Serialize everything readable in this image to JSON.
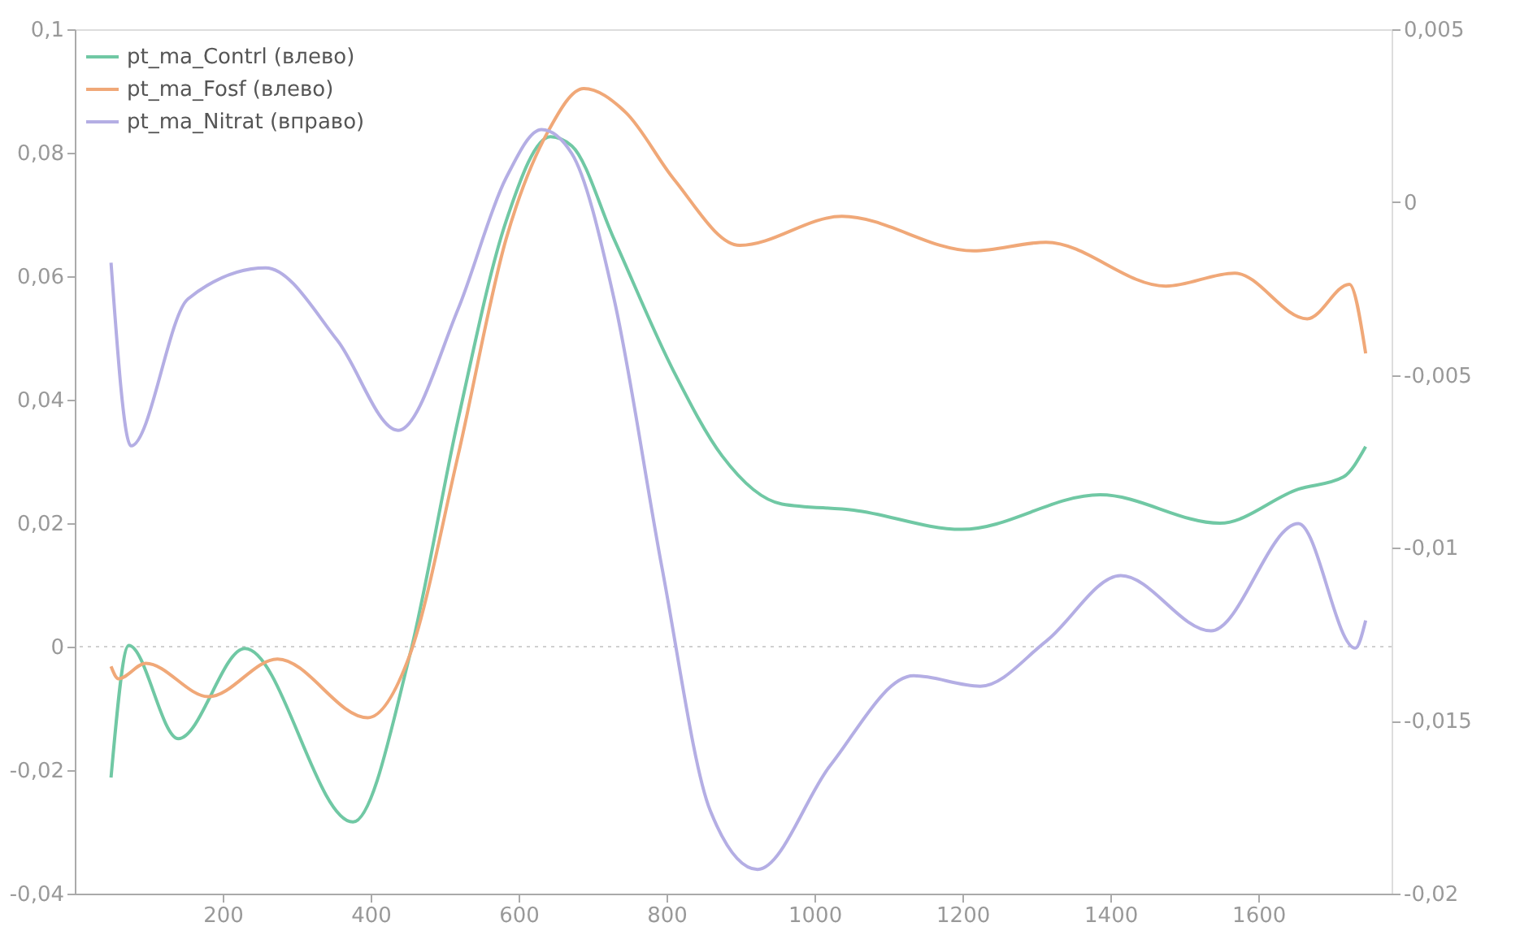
{
  "chart_data": {
    "type": "line",
    "xlim": [
      0,
      1780
    ],
    "xticks": [
      200,
      400,
      600,
      800,
      1000,
      1200,
      1400,
      1600
    ],
    "ylim": [
      -0.04,
      0.1
    ],
    "yticks": [
      {
        "value": -0.04,
        "label": "-0,04"
      },
      {
        "value": -0.02,
        "label": "-0,02"
      },
      0,
      {
        "value": 0.02,
        "label": "0,02"
      },
      {
        "value": 0.04,
        "label": "0,04"
      },
      {
        "value": 0.06,
        "label": "0,06"
      },
      {
        "value": 0.08,
        "label": "0,08"
      },
      {
        "value": 0.1,
        "label": "0,1"
      }
    ],
    "y2lim": [
      -0.02,
      0.005
    ],
    "y2ticks": [
      {
        "value": -0.02,
        "label": "-0,02"
      },
      {
        "value": -0.015,
        "label": "-0,015"
      },
      {
        "value": -0.01,
        "label": "-0,01"
      },
      {
        "value": -0.005,
        "label": "-0,005"
      },
      0,
      {
        "value": 0.005,
        "label": "0,005"
      }
    ],
    "grid": false,
    "legend": "top left",
    "line_style": "solid",
    "marker": "none",
    "ref_lines": [
      {
        "axis": "y",
        "value": 0,
        "color": "#d0d0d0",
        "line_style": "dotted"
      }
    ],
    "series": [
      {
        "name": "pt_ma_Contrl (влево)",
        "color": "#70c8a4",
        "x": [
          49,
          73,
          140,
          230,
          376,
          453,
          518,
          583,
          643,
          672,
          729,
          810,
          875,
          956,
          1053,
          1199,
          1386,
          1548,
          1654,
          1715,
          1745
        ],
        "values": [
          -0.0212,
          0.0002,
          -0.0149,
          -0.0003,
          -0.0284,
          -0.0013,
          0.0367,
          0.0689,
          0.0826,
          0.0811,
          0.066,
          0.0445,
          0.0309,
          0.0231,
          0.0221,
          0.019,
          0.0246,
          0.02,
          0.0255,
          0.0275,
          0.0324
        ]
      },
      {
        "name": "pt_ma_Fosf (влево)",
        "color": "#f0a878",
        "x": [
          49,
          59,
          96,
          181,
          274,
          396,
          453,
          518,
          583,
          640,
          688,
          745,
          810,
          899,
          1037,
          1215,
          1313,
          1475,
          1568,
          1666,
          1723,
          1745
        ],
        "values": [
          -0.0032,
          -0.0052,
          -0.0027,
          -0.0081,
          -0.002,
          -0.0115,
          -0.0013,
          0.0309,
          0.066,
          0.0835,
          0.0904,
          0.0865,
          0.0757,
          0.065,
          0.0697,
          0.0641,
          0.0655,
          0.0584,
          0.0605,
          0.0531,
          0.0587,
          0.0475
        ]
      },
      {
        "name": "pt_ma_Nitrat (вправо)",
        "color": "#b4aee4",
        "axis": "y2",
        "x": [
          49,
          76,
          153,
          258,
          355,
          437,
          518,
          583,
          631,
          672,
          729,
          794,
          859,
          923,
          1021,
          1134,
          1224,
          1313,
          1414,
          1536,
          1654,
          1731,
          1745
        ],
        "values": [
          -0.00175,
          -0.00705,
          -0.0028,
          -0.0019,
          -0.004,
          -0.0066,
          -0.0031,
          0.0007,
          0.0021,
          0.0014,
          -0.0028,
          -0.0106,
          -0.0176,
          -0.0193,
          -0.0163,
          -0.0137,
          -0.014,
          -0.0127,
          -0.0108,
          -0.0124,
          -0.0093,
          -0.0129,
          -0.0121
        ]
      }
    ]
  }
}
